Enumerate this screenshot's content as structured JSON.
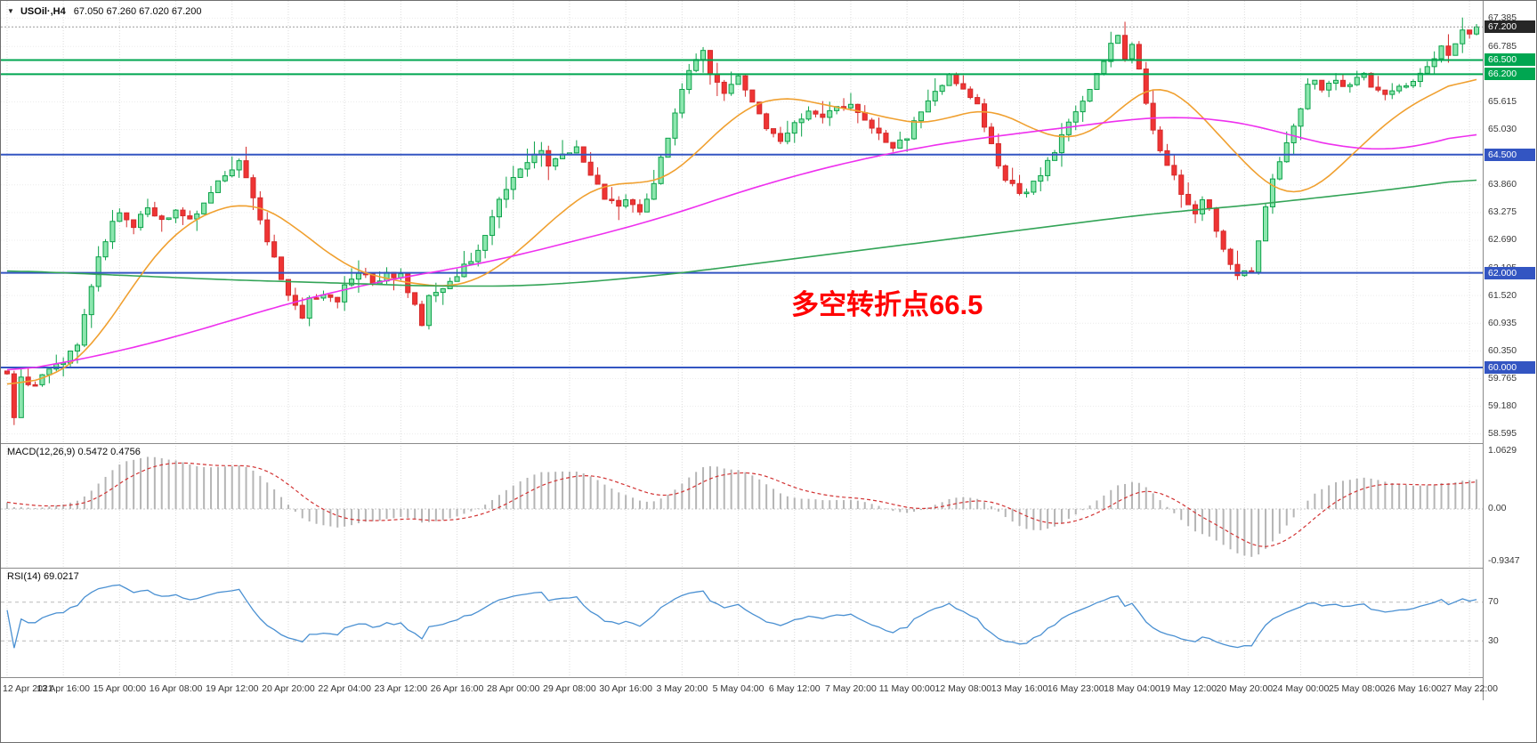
{
  "header": {
    "collapse_icon": "▼",
    "symbol": "USOil·,H4",
    "ohlc": "67.050 67.260 67.020 67.200"
  },
  "chart_data": [
    {
      "type": "candlestick",
      "title": "USOil H4",
      "bars": 210,
      "bars_per_label": 8,
      "ylim": [
        58.4,
        67.75
      ],
      "y_ticks": [
        "67.385",
        "66.785",
        "66.200",
        "65.615",
        "65.030",
        "64.445",
        "63.860",
        "63.275",
        "62.690",
        "62.105",
        "61.520",
        "60.935",
        "60.350",
        "59.765",
        "59.180",
        "58.595"
      ],
      "x_labels": [
        "12 Apr 2021",
        "13 Apr 16:00",
        "15 Apr 00:00",
        "16 Apr 08:00",
        "19 Apr 12:00",
        "20 Apr 20:00",
        "22 Apr 04:00",
        "23 Apr 12:00",
        "26 Apr 16:00",
        "28 Apr 00:00",
        "29 Apr 08:00",
        "30 Apr 16:00",
        "3 May 20:00",
        "5 May 04:00",
        "6 May 12:00",
        "7 May 20:00",
        "11 May 00:00",
        "12 May 08:00",
        "13 May 16:00",
        "16 May 23:00",
        "18 May 04:00",
        "19 May 12:00",
        "20 May 20:00",
        "24 May 00:00",
        "25 May 08:00",
        "26 May 16:00",
        "27 May 22:00"
      ],
      "final_candle": {
        "open": "67.050",
        "high": "67.260",
        "low": "67.020",
        "close": "67.200"
      },
      "current_price_label": {
        "value": "67.200",
        "bg": "#262626"
      },
      "up_color": "#0aa148",
      "up_fill": "#8ce6ae",
      "down_color": "#d42a2a",
      "down_fill": "#ef3434",
      "bid_line_color": "#9a9a9a",
      "h_lines": [
        {
          "price": 66.5,
          "color": "#00a651",
          "label": "66.500",
          "label_bg": "#00a651"
        },
        {
          "price": 66.2,
          "color": "#00a651",
          "label": "66.200",
          "label_bg": "#00a651"
        },
        {
          "price": 64.5,
          "color": "#3355c2",
          "label": "64.500",
          "label_bg": "#3355c2"
        },
        {
          "price": 62.0,
          "color": "#3355c2",
          "label": "62.000",
          "label_bg": "#3355c2"
        },
        {
          "price": 60.0,
          "color": "#3355c2",
          "label": "60.000",
          "label_bg": "#3355c2"
        }
      ],
      "annotation": {
        "text": "多空转折点66.5",
        "color": "#ff0000"
      },
      "price_anchors": [
        [
          -40,
          59.2
        ],
        [
          -20,
          59.6
        ],
        [
          -4,
          59.95
        ],
        [
          0,
          59.9
        ],
        [
          1,
          58.95
        ],
        [
          2,
          59.75
        ],
        [
          4,
          59.65
        ],
        [
          6,
          59.9
        ],
        [
          8,
          60.15
        ],
        [
          10,
          60.5
        ],
        [
          11,
          61.1
        ],
        [
          13,
          62.3
        ],
        [
          15,
          63.05
        ],
        [
          16,
          63.25
        ],
        [
          18,
          63.0
        ],
        [
          20,
          63.35
        ],
        [
          22,
          63.1
        ],
        [
          24,
          63.3
        ],
        [
          26,
          63.15
        ],
        [
          28,
          63.5
        ],
        [
          30,
          63.9
        ],
        [
          32,
          64.15
        ],
        [
          33,
          64.3
        ],
        [
          35,
          63.65
        ],
        [
          37,
          62.6
        ],
        [
          39,
          61.9
        ],
        [
          40,
          61.55
        ],
        [
          42,
          61.05
        ],
        [
          43,
          61.4
        ],
        [
          45,
          61.6
        ],
        [
          47,
          61.35
        ],
        [
          48,
          61.7
        ],
        [
          50,
          62.05
        ],
        [
          52,
          61.75
        ],
        [
          54,
          62.0
        ],
        [
          56,
          61.9
        ],
        [
          58,
          61.3
        ],
        [
          59,
          60.95
        ],
        [
          60,
          61.45
        ],
        [
          62,
          61.7
        ],
        [
          64,
          61.95
        ],
        [
          66,
          62.25
        ],
        [
          68,
          62.8
        ],
        [
          70,
          63.5
        ],
        [
          72,
          64.0
        ],
        [
          74,
          64.35
        ],
        [
          76,
          64.6
        ],
        [
          77,
          64.25
        ],
        [
          78,
          64.45
        ],
        [
          80,
          64.55
        ],
        [
          81,
          64.72
        ],
        [
          83,
          64.1
        ],
        [
          85,
          63.6
        ],
        [
          87,
          63.4
        ],
        [
          88,
          63.55
        ],
        [
          90,
          63.3
        ],
        [
          92,
          63.9
        ],
        [
          94,
          64.9
        ],
        [
          96,
          65.95
        ],
        [
          98,
          66.5
        ],
        [
          99,
          66.68
        ],
        [
          100,
          66.2
        ],
        [
          102,
          65.8
        ],
        [
          104,
          66.15
        ],
        [
          106,
          65.6
        ],
        [
          108,
          65.05
        ],
        [
          110,
          64.8
        ],
        [
          112,
          65.1
        ],
        [
          114,
          65.45
        ],
        [
          116,
          65.25
        ],
        [
          118,
          65.5
        ],
        [
          120,
          65.55
        ],
        [
          122,
          65.2
        ],
        [
          124,
          64.9
        ],
        [
          126,
          64.65
        ],
        [
          128,
          64.9
        ],
        [
          130,
          65.4
        ],
        [
          132,
          65.9
        ],
        [
          134,
          66.15
        ],
        [
          136,
          65.95
        ],
        [
          138,
          65.5
        ],
        [
          140,
          64.7
        ],
        [
          142,
          64.0
        ],
        [
          144,
          63.6
        ],
        [
          146,
          63.9
        ],
        [
          148,
          64.3
        ],
        [
          150,
          64.9
        ],
        [
          152,
          65.4
        ],
        [
          154,
          65.9
        ],
        [
          156,
          66.5
        ],
        [
          157,
          66.85
        ],
        [
          158,
          66.95
        ],
        [
          159,
          66.6
        ],
        [
          160,
          66.8
        ],
        [
          161,
          66.3
        ],
        [
          162,
          65.5
        ],
        [
          164,
          64.6
        ],
        [
          166,
          64.0
        ],
        [
          168,
          63.4
        ],
        [
          169,
          63.25
        ],
        [
          170,
          63.55
        ],
        [
          171,
          63.3
        ],
        [
          172,
          62.9
        ],
        [
          173,
          62.5
        ],
        [
          174,
          62.15
        ],
        [
          175,
          61.95
        ],
        [
          176,
          62.05
        ],
        [
          177,
          62.0
        ],
        [
          178,
          62.65
        ],
        [
          179,
          63.4
        ],
        [
          180,
          64.0
        ],
        [
          182,
          64.8
        ],
        [
          184,
          65.5
        ],
        [
          185,
          65.9
        ],
        [
          186,
          66.1
        ],
        [
          187,
          65.85
        ],
        [
          188,
          66.05
        ],
        [
          190,
          65.95
        ],
        [
          192,
          66.1
        ],
        [
          193,
          66.25
        ],
        [
          194,
          65.95
        ],
        [
          196,
          65.8
        ],
        [
          198,
          65.95
        ],
        [
          200,
          66.05
        ],
        [
          202,
          66.35
        ],
        [
          204,
          66.75
        ],
        [
          205,
          66.6
        ],
        [
          206,
          66.9
        ],
        [
          207,
          67.1
        ],
        [
          208,
          67.05
        ],
        [
          209,
          67.2
        ]
      ],
      "ma_lines": [
        {
          "name": "ma-fast-orange",
          "color": "#f0a030",
          "anchors": [
            [
              0,
              59.6
            ],
            [
              4,
              59.7
            ],
            [
              8,
              59.9
            ],
            [
              12,
              60.4
            ],
            [
              16,
              61.3
            ],
            [
              20,
              62.2
            ],
            [
              24,
              62.9
            ],
            [
              28,
              63.25
            ],
            [
              32,
              63.45
            ],
            [
              34,
              63.5
            ],
            [
              36,
              63.45
            ],
            [
              40,
              63.1
            ],
            [
              44,
              62.6
            ],
            [
              48,
              62.15
            ],
            [
              52,
              61.9
            ],
            [
              56,
              61.85
            ],
            [
              60,
              61.7
            ],
            [
              64,
              61.7
            ],
            [
              68,
              61.9
            ],
            [
              72,
              62.35
            ],
            [
              76,
              62.9
            ],
            [
              80,
              63.45
            ],
            [
              84,
              63.85
            ],
            [
              86,
              63.95
            ],
            [
              88,
              63.9
            ],
            [
              92,
              63.85
            ],
            [
              96,
              64.2
            ],
            [
              100,
              64.85
            ],
            [
              104,
              65.4
            ],
            [
              108,
              65.7
            ],
            [
              110,
              65.75
            ],
            [
              112,
              65.7
            ],
            [
              116,
              65.55
            ],
            [
              120,
              65.45
            ],
            [
              124,
              65.35
            ],
            [
              128,
              65.15
            ],
            [
              132,
              65.15
            ],
            [
              136,
              65.4
            ],
            [
              140,
              65.5
            ],
            [
              144,
              65.2
            ],
            [
              148,
              64.85
            ],
            [
              152,
              64.8
            ],
            [
              156,
              65.1
            ],
            [
              160,
              65.7
            ],
            [
              162,
              66.0
            ],
            [
              164,
              66.05
            ],
            [
              166,
              65.9
            ],
            [
              168,
              65.6
            ],
            [
              172,
              65.0
            ],
            [
              176,
              64.3
            ],
            [
              180,
              63.75
            ],
            [
              182,
              63.6
            ],
            [
              184,
              63.6
            ],
            [
              186,
              63.75
            ],
            [
              190,
              64.3
            ],
            [
              194,
              64.9
            ],
            [
              198,
              65.4
            ],
            [
              202,
              65.75
            ],
            [
              206,
              66.0
            ],
            [
              209,
              66.25
            ]
          ]
        },
        {
          "name": "ma-mid-magenta",
          "color": "#ee30ee",
          "anchors": [
            [
              0,
              59.9
            ],
            [
              8,
              60.1
            ],
            [
              16,
              60.35
            ],
            [
              24,
              60.65
            ],
            [
              32,
              61.0
            ],
            [
              40,
              61.35
            ],
            [
              48,
              61.65
            ],
            [
              56,
              61.9
            ],
            [
              64,
              62.1
            ],
            [
              72,
              62.35
            ],
            [
              80,
              62.65
            ],
            [
              88,
              62.95
            ],
            [
              96,
              63.3
            ],
            [
              104,
              63.7
            ],
            [
              112,
              64.05
            ],
            [
              120,
              64.35
            ],
            [
              128,
              64.6
            ],
            [
              136,
              64.8
            ],
            [
              144,
              64.95
            ],
            [
              152,
              65.1
            ],
            [
              160,
              65.25
            ],
            [
              166,
              65.3
            ],
            [
              172,
              65.25
            ],
            [
              178,
              65.1
            ],
            [
              184,
              64.85
            ],
            [
              190,
              64.65
            ],
            [
              196,
              64.6
            ],
            [
              200,
              64.65
            ],
            [
              204,
              64.8
            ],
            [
              209,
              65.0
            ]
          ]
        },
        {
          "name": "ma-slow-green",
          "color": "#33a457",
          "anchors": [
            [
              0,
              62.05
            ],
            [
              16,
              61.95
            ],
            [
              32,
              61.85
            ],
            [
              48,
              61.78
            ],
            [
              60,
              61.72
            ],
            [
              72,
              61.72
            ],
            [
              80,
              61.78
            ],
            [
              88,
              61.88
            ],
            [
              96,
              62.0
            ],
            [
              104,
              62.15
            ],
            [
              112,
              62.3
            ],
            [
              120,
              62.45
            ],
            [
              128,
              62.6
            ],
            [
              136,
              62.75
            ],
            [
              144,
              62.9
            ],
            [
              152,
              63.05
            ],
            [
              160,
              63.2
            ],
            [
              168,
              63.32
            ],
            [
              176,
              63.42
            ],
            [
              184,
              63.55
            ],
            [
              192,
              63.68
            ],
            [
              200,
              63.82
            ],
            [
              209,
              64.0
            ]
          ]
        }
      ]
    },
    {
      "type": "macd-histogram",
      "label": "MACD(12,26,9) 0.5472 0.4756",
      "params": [
        12,
        26,
        9
      ],
      "current": {
        "macd": "0.5472",
        "signal": "0.4756"
      },
      "ylim": [
        -0.9347,
        1.0629
      ],
      "y_ticks": [
        "1.0629",
        "0.00",
        "-0.9347"
      ],
      "histogram_color": "#b5b5b5",
      "signal_color": "#d23333"
    },
    {
      "type": "rsi-line",
      "label": "RSI(14) 69.0217",
      "period": 14,
      "current": "69.0217",
      "levels": [
        70,
        30
      ],
      "ylim": [
        0,
        100
      ],
      "y_ticks": [
        "70",
        "30"
      ],
      "line_color": "#4a90d2",
      "level_color": "#b9b9b9"
    }
  ]
}
